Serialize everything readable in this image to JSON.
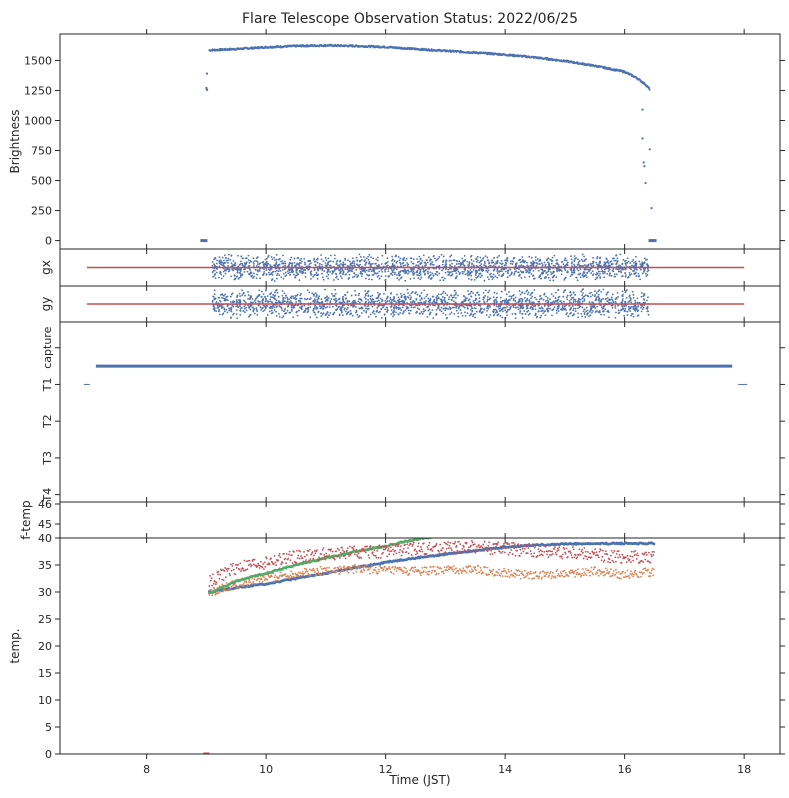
{
  "chart_data": {
    "type": "scatter",
    "title": "Flare Telescope Observation Status: 2022/06/25",
    "xlabel": "Time (JST)",
    "xlim": [
      6.55,
      18.6
    ],
    "xticks": [
      8,
      10,
      12,
      14,
      16,
      18
    ],
    "xtick_labels": [
      "8",
      "10",
      "12",
      "14",
      "16",
      "18"
    ],
    "colors": {
      "blue": "#4c72b0",
      "orange": "#dd8452",
      "green": "#55a868",
      "red": "#c44e52"
    },
    "panels": [
      {
        "id": "brightness",
        "ylabel": "Brightness",
        "ylim": [
          -70,
          1720
        ],
        "yticks": [
          0,
          250,
          500,
          750,
          1000,
          1250,
          1500
        ],
        "ytick_labels": [
          "0",
          "250",
          "500",
          "750",
          "1000",
          "1250",
          "1500"
        ],
        "series": [
          {
            "color": "blue",
            "style": "dots",
            "points": [
              [
                8.95,
                0
              ],
              [
                9.0,
                1270
              ],
              [
                9.02,
                1420
              ],
              [
                9.05,
                1585
              ],
              [
                9.5,
                1595
              ],
              [
                10,
                1610
              ],
              [
                10.5,
                1620
              ],
              [
                11,
                1625
              ],
              [
                11.5,
                1620
              ],
              [
                12,
                1612
              ],
              [
                12.5,
                1595
              ],
              [
                13,
                1580
              ],
              [
                13.5,
                1565
              ],
              [
                14,
                1548
              ],
              [
                14.5,
                1525
              ],
              [
                15,
                1495
              ],
              [
                15.5,
                1455
              ],
              [
                16,
                1405
              ],
              [
                16.2,
                1355
              ],
              [
                16.35,
                1300
              ],
              [
                16.4,
                1270
              ],
              [
                16.42,
                1260
              ]
            ]
          },
          {
            "color": "blue",
            "style": "sparse",
            "points": [
              [
                9.01,
                1390
              ],
              [
                16.3,
                1090
              ],
              [
                16.3,
                850
              ],
              [
                16.32,
                650
              ],
              [
                16.33,
                620
              ],
              [
                16.35,
                480
              ],
              [
                16.45,
                270
              ],
              [
                16.42,
                760
              ],
              [
                16.45,
                0
              ],
              [
                16.5,
                0
              ]
            ]
          }
        ]
      },
      {
        "id": "gx",
        "ylabel": "gx",
        "ylim": [
          -1,
          1
        ],
        "yticks": [],
        "ytick_labels": [],
        "series": [
          {
            "color": "blue",
            "style": "noise",
            "xrange": [
              9.1,
              16.4
            ],
            "center": 0.0,
            "spread": 0.75
          },
          {
            "color": "red",
            "style": "line",
            "points": [
              [
                7.0,
                0.0
              ],
              [
                18.0,
                0.0
              ]
            ]
          }
        ]
      },
      {
        "id": "gy",
        "ylabel": "gy",
        "ylim": [
          -1,
          1
        ],
        "yticks": [],
        "ytick_labels": [],
        "series": [
          {
            "color": "blue",
            "style": "noise",
            "xrange": [
              9.1,
              16.4
            ],
            "center": 0.0,
            "spread": 0.85
          },
          {
            "color": "red",
            "style": "line",
            "points": [
              [
                7.0,
                0.0
              ],
              [
                18.0,
                0.0
              ]
            ]
          }
        ]
      },
      {
        "id": "capture",
        "ylabel": "",
        "ylim": [
          5.2,
          0.3
        ],
        "yticks": [
          1,
          2,
          3,
          4,
          5
        ],
        "ytick_labels": [
          "capture",
          "T1",
          "T2",
          "T3",
          "T4"
        ],
        "series": [
          {
            "color": "blue",
            "style": "line",
            "width": 3,
            "points": [
              [
                7.15,
                1.5
              ],
              [
                17.8,
                1.5
              ]
            ]
          },
          {
            "color": "blue",
            "style": "line",
            "width": 1,
            "points": [
              [
                6.95,
                2.0
              ],
              [
                7.05,
                2.0
              ]
            ]
          },
          {
            "color": "blue",
            "style": "line",
            "width": 1,
            "points": [
              [
                17.9,
                2.0
              ],
              [
                18.05,
                2.0
              ]
            ]
          }
        ]
      },
      {
        "id": "f-temp",
        "ylabel": "f-temp",
        "ylim": [
          44.3,
          46.1
        ],
        "yticks": [
          45,
          46
        ],
        "ytick_labels": [
          "45",
          "46"
        ],
        "series": []
      },
      {
        "id": "temp",
        "ylabel": "temp.",
        "ylim": [
          0,
          40
        ],
        "yticks": [
          0,
          5,
          10,
          15,
          20,
          25,
          30,
          35,
          40
        ],
        "ytick_labels": [
          "0",
          "5",
          "10",
          "15",
          "20",
          "25",
          "30",
          "35",
          "40"
        ],
        "series": [
          {
            "color": "blue",
            "style": "thick",
            "points": [
              [
                9.05,
                30
              ],
              [
                9.5,
                30.8
              ],
              [
                10,
                31.5
              ],
              [
                10.5,
                32.5
              ],
              [
                11,
                33.5
              ],
              [
                11.5,
                34.5
              ],
              [
                12,
                35.5
              ],
              [
                12.5,
                36.3
              ],
              [
                13,
                37
              ],
              [
                13.5,
                37.7
              ],
              [
                14,
                38.3
              ],
              [
                14.5,
                38.7
              ],
              [
                15,
                38.9
              ],
              [
                16,
                39
              ],
              [
                16.5,
                39
              ]
            ]
          },
          {
            "color": "orange",
            "style": "noisy",
            "points": [
              [
                9.05,
                29.8
              ],
              [
                9.5,
                31.5
              ],
              [
                10,
                32.5
              ],
              [
                10.5,
                33.5
              ],
              [
                11,
                34
              ],
              [
                11.5,
                34.3
              ],
              [
                12,
                34
              ],
              [
                12.5,
                33.8
              ],
              [
                13,
                34
              ],
              [
                13.5,
                34.2
              ],
              [
                14,
                33.5
              ],
              [
                14.5,
                33
              ],
              [
                15,
                33.5
              ],
              [
                15.5,
                33.8
              ],
              [
                16,
                33.2
              ],
              [
                16.5,
                33.8
              ]
            ],
            "jitter": 0.8
          },
          {
            "color": "green",
            "style": "thick",
            "points": [
              [
                9.05,
                29.8
              ],
              [
                9.5,
                32
              ],
              [
                10,
                33.5
              ],
              [
                10.5,
                35
              ],
              [
                11,
                36.3
              ],
              [
                11.5,
                37.5
              ],
              [
                12,
                38.5
              ],
              [
                12.3,
                39.3
              ],
              [
                12.6,
                39.9
              ],
              [
                12.8,
                40.2
              ]
            ]
          },
          {
            "color": "red",
            "style": "noisy",
            "points": [
              [
                9.05,
                32
              ],
              [
                9.5,
                34.5
              ],
              [
                10,
                35.5
              ],
              [
                10.5,
                36.5
              ],
              [
                11,
                37
              ],
              [
                11.5,
                37.3
              ],
              [
                12,
                37.5
              ],
              [
                12.5,
                38
              ],
              [
                13,
                38.2
              ],
              [
                13.5,
                38.3
              ],
              [
                14,
                38
              ],
              [
                14.5,
                37.7
              ],
              [
                15,
                37.3
              ],
              [
                15.5,
                36.8
              ],
              [
                16,
                36.5
              ],
              [
                16.5,
                36.3
              ]
            ],
            "jitter": 1.2
          }
        ]
      }
    ]
  }
}
